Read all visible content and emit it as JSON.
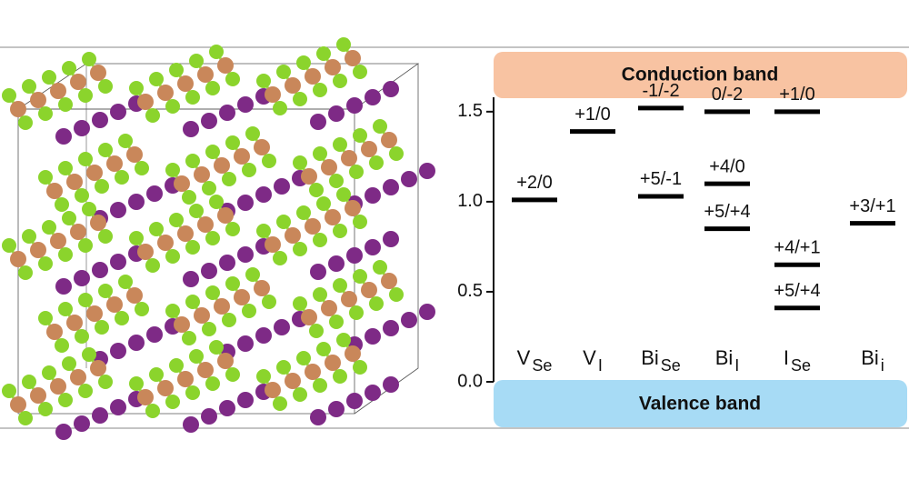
{
  "chart_data": {
    "type": "levels",
    "top_band": "Conduction band",
    "bottom_band": "Valence band",
    "ylim": [
      0,
      1.58
    ],
    "yticks": [
      {
        "value": 0,
        "label": "0.0"
      },
      0.5,
      {
        "value": 1,
        "label": "1.0"
      },
      1.5
    ],
    "categories": [
      {
        "symbol": "V",
        "subscript": "Se",
        "levels": [
          {
            "label": "+2/0",
            "value": 1.01
          }
        ]
      },
      {
        "symbol": "V",
        "subscript": "I",
        "levels": [
          {
            "label": "+1/0",
            "value": 1.39
          }
        ]
      },
      {
        "symbol": "Bi",
        "subscript": "Se",
        "levels": [
          {
            "label": "-1/-2",
            "value": 1.52
          },
          {
            "label": "+5/-1",
            "value": 1.03
          }
        ]
      },
      {
        "symbol": "Bi",
        "subscript": "I",
        "levels": [
          {
            "label": "0/-2",
            "value": 1.5
          },
          {
            "label": "+4/0",
            "value": 1.1
          },
          {
            "label": "+5/+4",
            "value": 0.85
          }
        ]
      },
      {
        "symbol": "I",
        "subscript": "Se",
        "levels": [
          {
            "label": "+1/0",
            "value": 1.5
          },
          {
            "label": "+4/+1",
            "value": 0.65
          },
          {
            "label": "+5/+4",
            "value": 0.41
          }
        ]
      },
      {
        "symbol": "Bi",
        "subscript": "i",
        "levels": [
          {
            "label": "+3/+1",
            "value": 0.88
          }
        ]
      }
    ]
  }
}
